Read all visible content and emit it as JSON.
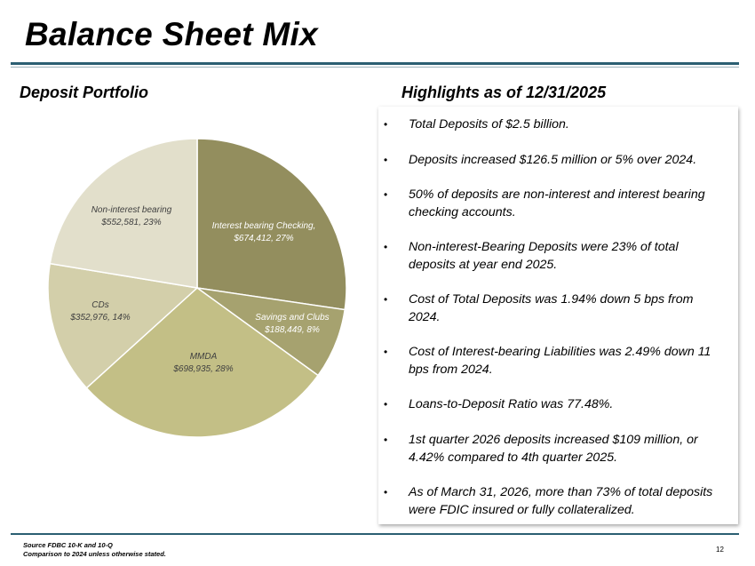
{
  "slide": {
    "title": "Balance Sheet Mix",
    "page_number": "12"
  },
  "deposit_portfolio": {
    "heading": "Deposit Portfolio"
  },
  "highlights": {
    "heading": "Highlights as of 12/31/2025",
    "bullet_glyph": "•",
    "items": [
      [
        "Total Deposits of $2.5 billion."
      ],
      [
        "Deposits increased $126.5 million or 5% over 2024."
      ],
      [
        "50% of deposits are non-interest and interest bearing",
        "checking accounts."
      ],
      [
        "Non-interest-Bearing Deposits were 23% of total",
        "deposits at year end 2025."
      ],
      [
        "Cost of Total Deposits was 1.94% down 5 bps from",
        "2024."
      ],
      [
        "Cost of Interest-bearing Liabilities was 2.49% down 11",
        "bps from 2024."
      ],
      [
        "Loans-to-Deposit Ratio was 77.48%."
      ],
      [
        "1st quarter 2026 deposits increased $109 million, or",
        "4.42% compared to 4th quarter 2025."
      ],
      [
        "As of March 31, 2026, more than 73% of total deposits",
        "were FDIC insured or fully collateralized."
      ]
    ]
  },
  "footer": {
    "source": "Source FDBC 10-K and 10-Q",
    "note": "Comparison to 2024 unless otherwise stated."
  },
  "chart_data": {
    "type": "pie",
    "title": "",
    "start_angle_deg": 0,
    "direction": "clockwise",
    "slices": [
      {
        "name": "Interest bearing Checking,",
        "value": 674412,
        "value_label": "$674,412, 27%",
        "percent": 27,
        "color": "#938e5e",
        "label_color": "#ffffff"
      },
      {
        "name": "Savings and Clubs",
        "value": 188449,
        "value_label": "$188,449, 8%",
        "percent": 8,
        "color": "#a6a26f",
        "label_color": "#ffffff"
      },
      {
        "name": "MMDA",
        "value": 698935,
        "value_label": "$698,935, 28%",
        "percent": 28,
        "color": "#c3bf86",
        "label_color": "#404040"
      },
      {
        "name": "CDs",
        "value": 352976,
        "value_label": "$352,976, 14%",
        "percent": 14,
        "color": "#d3cfaa",
        "label_color": "#404040"
      },
      {
        "name": "Non-interest bearing",
        "value": 552581,
        "value_label": "$552,581, 23%",
        "percent": 23,
        "color": "#e2dfcb",
        "label_color": "#404040"
      }
    ]
  }
}
